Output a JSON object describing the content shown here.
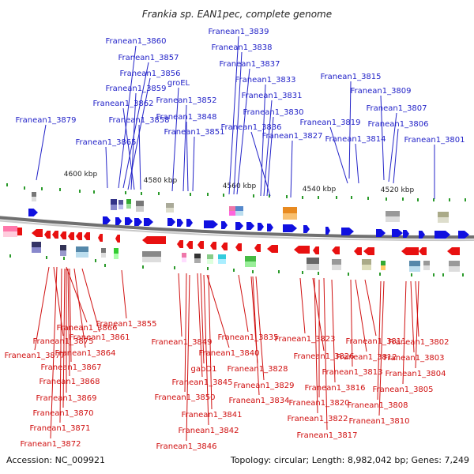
{
  "title": "Frankia sp. EAN1pec, complete genome",
  "scale_labels": [
    "4600 kbp",
    "4580 kbp",
    "4560 kbp",
    "4540 kbp",
    "4520 kbp"
  ],
  "top_labels": [
    "Franean1_3860",
    "Franean1_3857",
    "Franean1_3856",
    "Franean1_3859",
    "Franean1_3862",
    "Franean1_3858",
    "Franean1_3865",
    "Franean1_3879",
    "groEL",
    "Franean1_3852",
    "Franean1_3848",
    "Franean1_3851",
    "Franean1_3839",
    "Franean1_3838",
    "Franean1_3837",
    "Franean1_3833",
    "Franean1_3831",
    "Franean1_3830",
    "Franean1_3836",
    "Franean1_3827",
    "Franean1_3815",
    "Franean1_3809",
    "Franean1_3807",
    "Franean1_3819",
    "Franean1_3814",
    "Franean1_3806",
    "Franean1_3801"
  ],
  "bottom_labels": [
    "Franean1_3866",
    "Franean1_3875",
    "Franean1_3861",
    "Franean1_3864",
    "Franean1_3877",
    "Franean1_3867",
    "Franean1_3868",
    "Franean1_3869",
    "Franean1_3870",
    "Franean1_3871",
    "Franean1_3872",
    "Franean1_3855",
    "Franean1_3849",
    "Franean1_3840",
    "Franean1_3835",
    "gabD1",
    "Franean1_3845",
    "Franean1_3850",
    "Franean1_3841",
    "Franean1_3842",
    "Franean1_3846",
    "Franean1_3828",
    "Franean1_3829",
    "Franean1_3834",
    "Franean1_3823",
    "Franean1_3826",
    "Franean1_3811",
    "Franean1_3812",
    "Franean1_3813",
    "Franean1_3816",
    "Franean1_3820",
    "Franean1_3822",
    "Franean1_3817",
    "Franean1_3802",
    "Franean1_3803",
    "Franean1_3804",
    "Franean1_3805",
    "Franean1_3808",
    "Franean1_3810"
  ],
  "accession": "Accession: NC_009921",
  "summary": "Topology: circular; Length: 8,982,042 bp; Genes: 7,249",
  "colors": {
    "forward": "#1010e0",
    "reverse": "#e81010",
    "label_top": "#2323c8",
    "label_bottom": "#d01010",
    "backbone": "#888888"
  }
}
